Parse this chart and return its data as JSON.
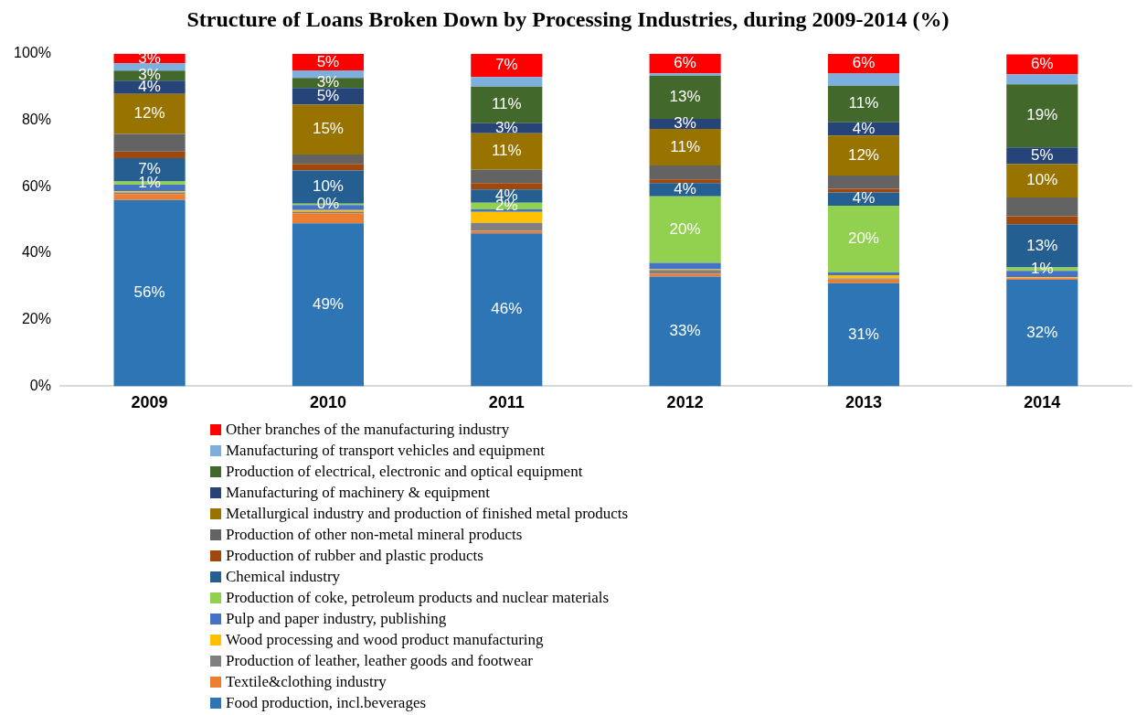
{
  "chart_data": {
    "type": "bar",
    "stacked": true,
    "title": "Structure of Loans Broken Down by Processing Industries, during 2009-2014 (%)",
    "categories": [
      "2009",
      "2010",
      "2011",
      "2012",
      "2013",
      "2014"
    ],
    "ylim": [
      0,
      100
    ],
    "yticks": [
      {
        "value": 0,
        "label": "0%"
      },
      {
        "value": 20,
        "label": "20%"
      },
      {
        "value": 40,
        "label": "40%"
      },
      {
        "value": 60,
        "label": "60%"
      },
      {
        "value": 80,
        "label": "80%"
      },
      {
        "value": 100,
        "label": "100%"
      }
    ],
    "grid": false,
    "legend": "bottom",
    "series": [
      {
        "name": "Food production, incl.beverages",
        "color": "#2e75b6",
        "values": [
          56,
          49,
          46,
          33,
          31,
          32
        ],
        "value_labels": [
          "56%",
          "49%",
          "46%",
          "33%",
          "31%",
          "32%"
        ]
      },
      {
        "name": "Textile&clothing industry",
        "color": "#ed7d31",
        "values": [
          1.8,
          3,
          0.7,
          0.8,
          1.1,
          0.5
        ]
      },
      {
        "name": "Production of leather, leather goods and footwear",
        "color": "#808080",
        "values": [
          0.5,
          0.5,
          2.4,
          1.2,
          0.3,
          null
        ]
      },
      {
        "name": "Wood processing and wood product manufacturing",
        "color": "#ffc000",
        "values": [
          0.3,
          0.5,
          3.3,
          0.2,
          1,
          0.3
        ]
      },
      {
        "name": "Pulp and paper industry, publishing",
        "color": "#4472c4",
        "values": [
          2,
          1.5,
          0.8,
          1.9,
          0.9,
          1.9
        ]
      },
      {
        "name": "Production of coke, petroleum products and nuclear materials",
        "color": "#92d050",
        "values": [
          1,
          0.4,
          2,
          20,
          20,
          1
        ],
        "value_labels": [
          "1%",
          "0%",
          "2%",
          "20%",
          "20%",
          "1%"
        ]
      },
      {
        "name": "Chemical industry",
        "color": "#255e91",
        "values": [
          7,
          10,
          4,
          4,
          4,
          13
        ],
        "value_labels": [
          "7%",
          "10%",
          "4%",
          "4%",
          "4%",
          "13%"
        ]
      },
      {
        "name": "Production of rubber and plastic products",
        "color": "#9e480e",
        "values": [
          2,
          2,
          1.9,
          1.1,
          1.1,
          2.4
        ]
      },
      {
        "name": "Production of other non-metal mineral products",
        "color": "#636363",
        "values": [
          5.3,
          2.8,
          4,
          4.2,
          4,
          5.7
        ]
      },
      {
        "name": "Metallurgical industry and production of finished metal products",
        "color": "#997300",
        "values": [
          12,
          15,
          11,
          11,
          12,
          10
        ],
        "value_labels": [
          "12%",
          "15%",
          "11%",
          "11%",
          "12%",
          "10%"
        ]
      },
      {
        "name": "Manufacturing of machinery & equipment",
        "color": "#264478",
        "values": [
          4,
          5,
          3,
          3,
          4,
          5
        ],
        "value_labels": [
          "4%",
          "5%",
          "3%",
          "3%",
          "4%",
          "5%"
        ]
      },
      {
        "name": "Production of electrical, electronic and optical equipment",
        "color": "#43682b",
        "values": [
          3,
          3,
          11,
          13,
          11,
          19
        ],
        "value_labels": [
          "3%",
          "3%",
          "11%",
          "13%",
          "11%",
          "19%"
        ]
      },
      {
        "name": "Manufacturing of transport vehicles and equipment",
        "color": "#7cafdd",
        "values": [
          2.2,
          2.3,
          2.9,
          0.7,
          3.6,
          3
        ]
      },
      {
        "name": "Other branches of the manufacturing industry",
        "color": "#ff0000",
        "values": [
          3,
          5,
          7,
          6,
          6,
          6
        ],
        "value_labels": [
          "3%",
          "5%",
          "7%",
          "6%",
          "6%",
          "6%"
        ]
      }
    ]
  }
}
